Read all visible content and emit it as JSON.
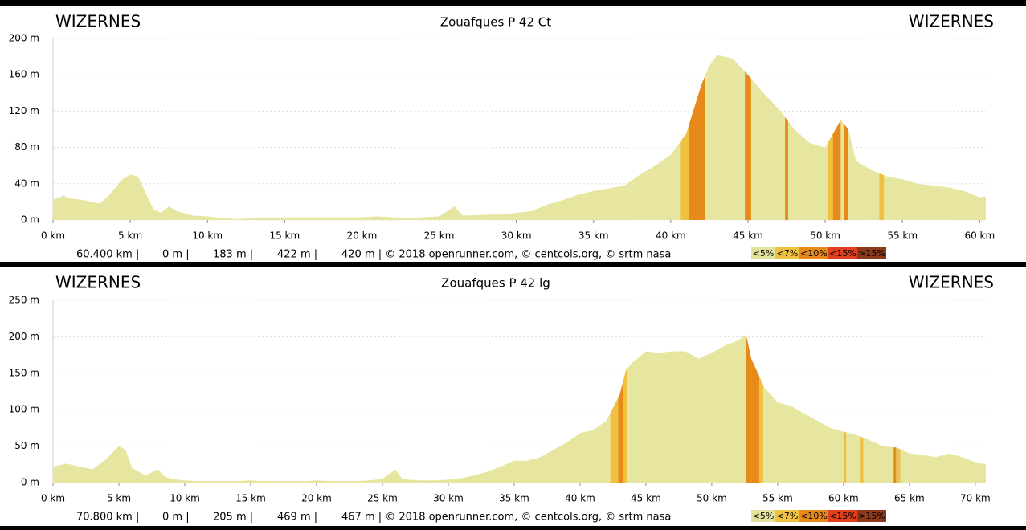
{
  "chart_data": [
    {
      "type": "area",
      "title": "Zouafques P 42 Ct",
      "start_label": "WIZERNES",
      "end_label": "WIZERNES",
      "color": "#e6e6a0",
      "x": [
        0,
        0.7,
        1,
        2,
        3,
        3.5,
        4,
        4.5,
        5,
        5.5,
        6,
        6.5,
        7,
        7.5,
        8,
        9,
        10,
        11,
        12,
        13,
        14,
        15,
        16,
        17,
        18,
        19,
        20,
        21,
        22,
        23,
        24,
        25,
        26,
        26.5,
        27,
        28,
        29,
        30,
        31,
        32,
        33,
        34,
        35,
        36,
        37,
        38,
        39,
        40,
        41,
        42,
        42.5,
        43,
        44,
        45,
        46,
        47,
        48,
        49,
        50,
        51,
        51.5,
        52,
        53,
        54,
        55,
        56,
        57,
        58,
        59,
        60,
        60.4
      ],
      "values": [
        22,
        27,
        24,
        22,
        18,
        25,
        35,
        45,
        50,
        48,
        30,
        12,
        8,
        15,
        10,
        5,
        4,
        2,
        1,
        2,
        2,
        3,
        3,
        3,
        3,
        3,
        3,
        4,
        3,
        2,
        3,
        4,
        15,
        5,
        5,
        6,
        6,
        8,
        10,
        17,
        22,
        28,
        32,
        35,
        38,
        50,
        60,
        72,
        95,
        150,
        170,
        182,
        178,
        160,
        140,
        122,
        100,
        85,
        80,
        110,
        100,
        65,
        55,
        48,
        45,
        40,
        38,
        36,
        32,
        25,
        26
      ],
      "xlim": [
        0,
        60.4
      ],
      "xticks": [
        {
          "value": 0,
          "label": "0 km"
        },
        {
          "value": 5,
          "label": "5 km"
        },
        {
          "value": 10,
          "label": "10 km"
        },
        {
          "value": 15,
          "label": "15 km"
        },
        {
          "value": 20,
          "label": "20 km"
        },
        {
          "value": 25,
          "label": "25 km"
        },
        {
          "value": 30,
          "label": "30 km"
        },
        {
          "value": 35,
          "label": "35 km"
        },
        {
          "value": 40,
          "label": "40 km"
        },
        {
          "value": 45,
          "label": "45 km"
        },
        {
          "value": 50,
          "label": "50 km"
        },
        {
          "value": 55,
          "label": "55 km"
        },
        {
          "value": 60,
          "label": "60 km"
        }
      ],
      "ylim": [
        0,
        200
      ],
      "yticks": [
        {
          "value": 0,
          "label": "0 m"
        },
        {
          "value": 40,
          "label": "40 m"
        },
        {
          "value": 80,
          "label": "80 m"
        },
        {
          "value": 120,
          "label": "120 m"
        },
        {
          "value": 160,
          "label": "160 m"
        },
        {
          "value": 200,
          "label": "200 m"
        }
      ],
      "grid": true,
      "gradient_sections": [
        {
          "from": 40.6,
          "to": 41.2,
          "color": "#f0c040"
        },
        {
          "from": 41.2,
          "to": 41.8,
          "color": "#e88a1a"
        },
        {
          "from": 41.8,
          "to": 42.2,
          "color": "#e88a1a"
        },
        {
          "from": 44.8,
          "to": 45.2,
          "color": "#e88a1a"
        },
        {
          "from": 47.4,
          "to": 47.6,
          "color": "#e88a1a"
        },
        {
          "from": 50.2,
          "to": 50.5,
          "color": "#f0c040"
        },
        {
          "from": 50.5,
          "to": 51.0,
          "color": "#e88a1a"
        },
        {
          "from": 51.2,
          "to": 51.5,
          "color": "#e88a1a"
        },
        {
          "from": 53.5,
          "to": 53.8,
          "color": "#f0c040"
        }
      ],
      "stats": [
        "60.400 km |",
        "0 m |",
        "183 m |",
        "422 m |",
        "420 m | © 2018 openrunner.com, © centcols.org, © srtm nasa"
      ],
      "legend": [
        {
          "label": "<5%",
          "color": "#e3e39e"
        },
        {
          "label": "<7%",
          "color": "#f0c040"
        },
        {
          "label": "<10%",
          "color": "#e88a1a"
        },
        {
          "label": "<15%",
          "color": "#e04020"
        },
        {
          "label": ">15%",
          "color": "#8b3a1a"
        }
      ]
    },
    {
      "type": "area",
      "title": "Zouafques P 42 lg",
      "start_label": "WIZERNES",
      "end_label": "WIZERNES",
      "color": "#e6e6a0",
      "x": [
        0,
        1,
        2,
        3,
        4,
        5,
        5.5,
        6,
        7,
        8,
        8.5,
        9,
        10,
        11,
        12,
        13,
        14,
        15,
        16,
        17,
        18,
        19,
        20,
        21,
        22,
        23,
        24,
        25,
        26,
        26.5,
        27,
        28,
        29,
        30,
        31,
        32,
        33,
        34,
        35,
        36,
        37,
        38,
        39,
        40,
        41,
        42,
        43,
        43.5,
        44,
        45,
        46,
        47,
        48,
        49,
        50,
        51,
        52,
        52.6,
        53,
        54,
        55,
        56,
        57,
        58,
        59,
        60,
        61,
        62,
        63,
        64,
        65,
        66,
        67,
        68,
        69,
        70,
        70.8
      ],
      "values": [
        22,
        26,
        22,
        18,
        32,
        50,
        45,
        20,
        10,
        18,
        8,
        5,
        3,
        2,
        2,
        2,
        2,
        3,
        2,
        2,
        2,
        2,
        3,
        2,
        2,
        2,
        3,
        5,
        18,
        5,
        4,
        3,
        3,
        4,
        6,
        10,
        15,
        22,
        30,
        30,
        35,
        45,
        55,
        68,
        72,
        85,
        120,
        155,
        165,
        180,
        178,
        180,
        180,
        170,
        178,
        188,
        195,
        203,
        170,
        130,
        110,
        105,
        95,
        85,
        75,
        70,
        65,
        58,
        50,
        48,
        40,
        38,
        35,
        40,
        35,
        28,
        25
      ],
      "xlim": [
        0,
        70.8
      ],
      "xticks": [
        {
          "value": 0,
          "label": "0 km"
        },
        {
          "value": 5,
          "label": "5 km"
        },
        {
          "value": 10,
          "label": "10 km"
        },
        {
          "value": 15,
          "label": "15 km"
        },
        {
          "value": 20,
          "label": "20 km"
        },
        {
          "value": 25,
          "label": "25 km"
        },
        {
          "value": 30,
          "label": "30 km"
        },
        {
          "value": 35,
          "label": "35 km"
        },
        {
          "value": 40,
          "label": "40 km"
        },
        {
          "value": 45,
          "label": "45 km"
        },
        {
          "value": 50,
          "label": "50 km"
        },
        {
          "value": 55,
          "label": "55 km"
        },
        {
          "value": 60,
          "label": "60 km"
        },
        {
          "value": 65,
          "label": "65 km"
        },
        {
          "value": 70,
          "label": "70 km"
        }
      ],
      "ylim": [
        0,
        250
      ],
      "yticks": [
        {
          "value": 0,
          "label": "0 m"
        },
        {
          "value": 50,
          "label": "50 m"
        },
        {
          "value": 100,
          "label": "100 m"
        },
        {
          "value": 150,
          "label": "150 m"
        },
        {
          "value": 200,
          "label": "200 m"
        },
        {
          "value": 250,
          "label": "250 m"
        }
      ],
      "grid": true,
      "gradient_sections": [
        {
          "from": 42.3,
          "to": 42.9,
          "color": "#f0c040"
        },
        {
          "from": 42.9,
          "to": 43.3,
          "color": "#e88a1a"
        },
        {
          "from": 43.3,
          "to": 43.6,
          "color": "#f0c040"
        },
        {
          "from": 52.6,
          "to": 53.0,
          "color": "#e88a1a"
        },
        {
          "from": 53.0,
          "to": 53.6,
          "color": "#e88a1a"
        },
        {
          "from": 53.6,
          "to": 53.9,
          "color": "#f0c040"
        },
        {
          "from": 60.0,
          "to": 60.2,
          "color": "#f0c040"
        },
        {
          "from": 61.3,
          "to": 61.5,
          "color": "#f0c040"
        },
        {
          "from": 63.8,
          "to": 64.0,
          "color": "#e88a1a"
        },
        {
          "from": 64.1,
          "to": 64.3,
          "color": "#f0c040"
        }
      ],
      "stats": [
        "70.800 km |",
        "0 m |",
        "205 m |",
        "469 m |",
        "467 m | © 2018 openrunner.com, © centcols.org, © srtm nasa"
      ],
      "legend": [
        {
          "label": "<5%",
          "color": "#e3e39e"
        },
        {
          "label": "<7%",
          "color": "#f0c040"
        },
        {
          "label": "<10%",
          "color": "#e88a1a"
        },
        {
          "label": "<15%",
          "color": "#e04020"
        },
        {
          "label": ">15%",
          "color": "#8b3a1a"
        }
      ]
    }
  ]
}
